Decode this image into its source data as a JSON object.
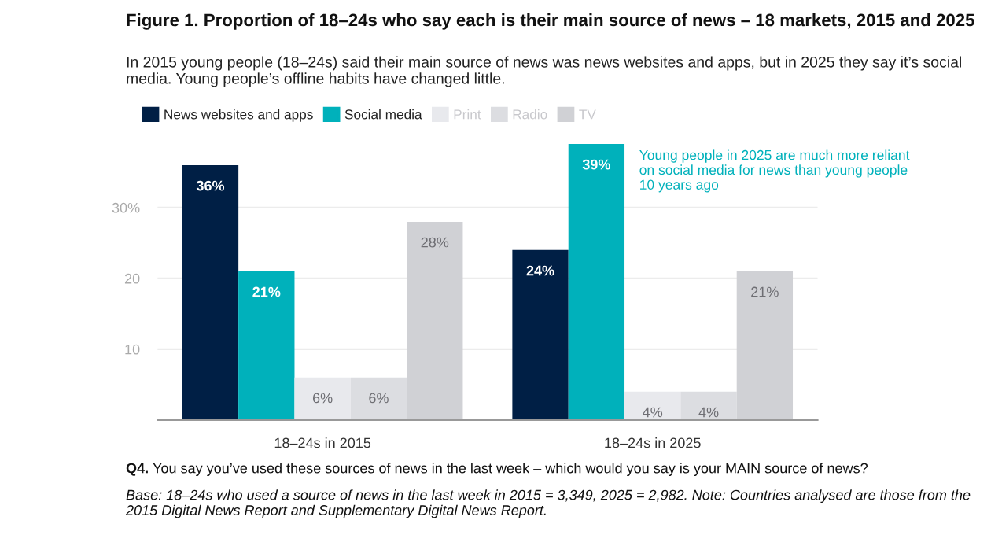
{
  "chart_data": {
    "type": "bar",
    "title": "Figure 1. Proportion of 18–24s who say each is their main source of news – 18 markets, 2015 and 2025",
    "subtitle": "In 2015 young people (18–24s) said their main source of news was news websites and apps, but in 2025 they say it’s social media. Young people’s offline habits have changed little.",
    "categories": [
      "18–24s in 2015",
      "18–24s in 2025"
    ],
    "series": [
      {
        "name": "News websites and apps",
        "color": "#001f45",
        "values": [
          36,
          24
        ]
      },
      {
        "name": "Social media",
        "color": "#00b1bb",
        "values": [
          21,
          39
        ]
      },
      {
        "name": "Print",
        "color": "#e8e9ed",
        "values": [
          6,
          4
        ]
      },
      {
        "name": "Radio",
        "color": "#dcdde1",
        "values": [
          6,
          4
        ]
      },
      {
        "name": "TV",
        "color": "#d0d1d5",
        "values": [
          28,
          21
        ]
      }
    ],
    "ylim": [
      0,
      39
    ],
    "yticks": [
      10,
      20,
      {
        "value": 30,
        "label": "30%"
      }
    ],
    "grid": "y",
    "legend": "top left",
    "value_labels": [
      "36%",
      "24%",
      "21%",
      "39%",
      "6%",
      "4%",
      "6%",
      "4%",
      "28%",
      "21%"
    ],
    "annotations": [
      "Young people in 2025 are much more reliant on social media for news than young people 10 years ago",
      "Q4.",
      "You say you’ve used these sources of news in the last week – which would you say is your MAIN source of news?",
      "Base: 18–24s who used a source of news in the last week in 2015 = 3,349, 2025 = 2,982. Note: Countries analysed are those from the 2015 Digital News Report and Supplementary Digital News Report."
    ]
  }
}
